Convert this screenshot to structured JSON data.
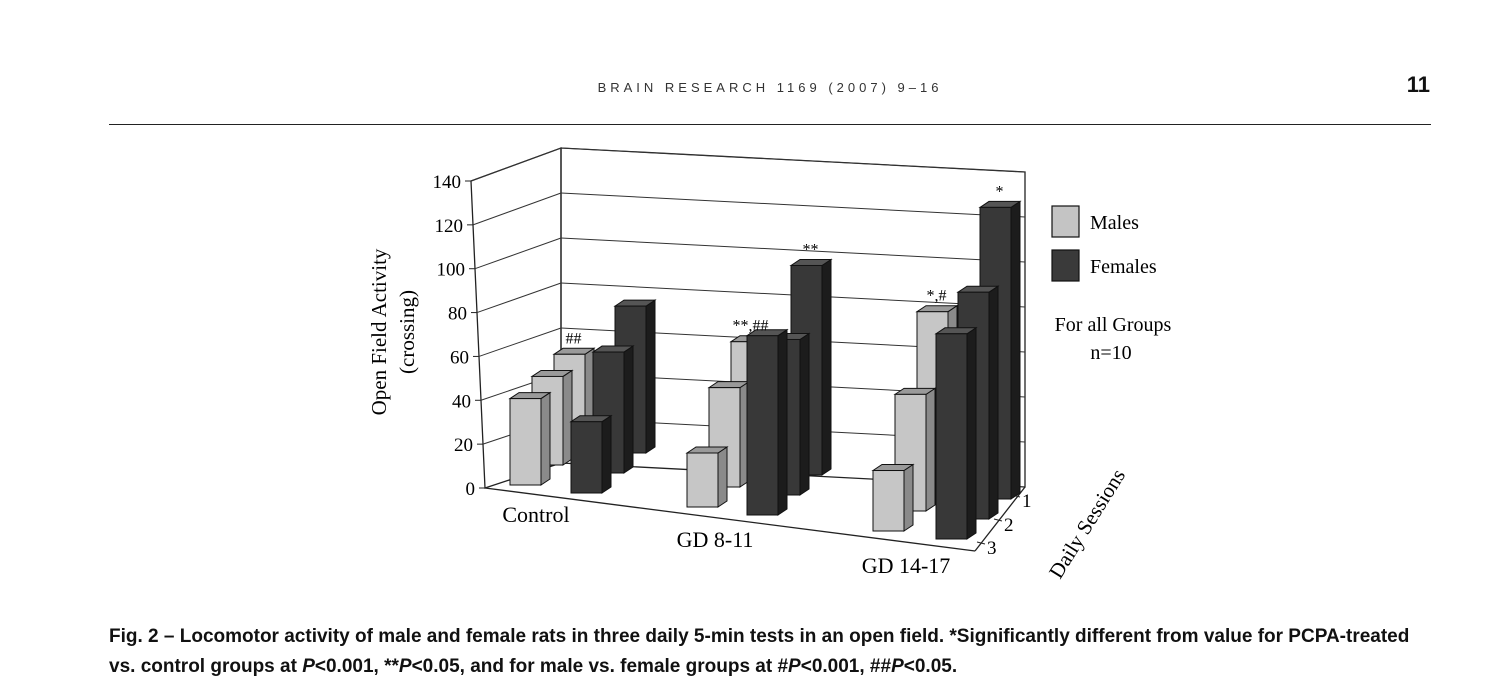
{
  "header": {
    "journal": "BRAIN RESEARCH 1169 (2007) 9–16",
    "page_number": "11"
  },
  "chart_data": {
    "type": "bar",
    "subtype": "3d-grouped",
    "ylabel_line1": "Open Field Activity",
    "ylabel_line2": "(crossing)",
    "ylim": [
      0,
      140
    ],
    "yticks": [
      "0",
      "20",
      "40",
      "60",
      "80",
      "100",
      "120",
      "140"
    ],
    "grid": true,
    "groups": [
      "Control",
      "GD 8-11",
      "GD 14-17"
    ],
    "depth_axis_label": "Daily Sessions",
    "depth_ticks": [
      "1",
      "2",
      "3"
    ],
    "series": [
      {
        "name": "Males",
        "color": "#c4c4c4"
      },
      {
        "name": "Females",
        "color": "#3a3a3a"
      }
    ],
    "bars": [
      {
        "group": "Control",
        "sex": "Males",
        "session": "3",
        "value": 40,
        "label": ""
      },
      {
        "group": "Control",
        "sex": "Males",
        "session": "2",
        "value": 41,
        "label": ""
      },
      {
        "group": "Control",
        "sex": "Males",
        "session": "1",
        "value": 42,
        "label": "##"
      },
      {
        "group": "Control",
        "sex": "Females",
        "session": "3",
        "value": 33,
        "label": ""
      },
      {
        "group": "Control",
        "sex": "Females",
        "session": "2",
        "value": 56,
        "label": ""
      },
      {
        "group": "Control",
        "sex": "Females",
        "session": "1",
        "value": 68,
        "label": ""
      },
      {
        "group": "GD 8-11",
        "sex": "Males",
        "session": "3",
        "value": 25,
        "label": ""
      },
      {
        "group": "GD 8-11",
        "sex": "Males",
        "session": "2",
        "value": 46,
        "label": ""
      },
      {
        "group": "GD 8-11",
        "sex": "Males",
        "session": "1",
        "value": 58,
        "label": "**,##"
      },
      {
        "group": "GD 8-11",
        "sex": "Females",
        "session": "3",
        "value": 83,
        "label": ""
      },
      {
        "group": "GD 8-11",
        "sex": "Females",
        "session": "2",
        "value": 72,
        "label": ""
      },
      {
        "group": "GD 8-11",
        "sex": "Females",
        "session": "1",
        "value": 97,
        "label": "**"
      },
      {
        "group": "GD 14-17",
        "sex": "Males",
        "session": "3",
        "value": 28,
        "label": ""
      },
      {
        "group": "GD 14-17",
        "sex": "Males",
        "session": "2",
        "value": 54,
        "label": ""
      },
      {
        "group": "GD 14-17",
        "sex": "Males",
        "session": "1",
        "value": 83,
        "label": "*,#"
      },
      {
        "group": "GD 14-17",
        "sex": "Females",
        "session": "3",
        "value": 95,
        "label": ""
      },
      {
        "group": "GD 14-17",
        "sex": "Females",
        "session": "2",
        "value": 105,
        "label": ""
      },
      {
        "group": "GD 14-17",
        "sex": "Females",
        "session": "1",
        "value": 135,
        "label": "*"
      }
    ],
    "legend_position": "right",
    "annotation_line1": "For all Groups",
    "annotation_line2": "n=10"
  },
  "caption": {
    "part1": "Fig. 2 – Locomotor activity of male and female rats in three daily 5-min tests in an open field. *Significantly different from value for PCPA-treated vs. control groups at ",
    "p1": "P",
    "part2": "<0.001, **",
    "p2": "P",
    "part3": "<0.05, and for male vs. female groups at #",
    "p3": "P",
    "part4": "<0.001, ##",
    "p4": "P",
    "part5": "<0.05."
  }
}
